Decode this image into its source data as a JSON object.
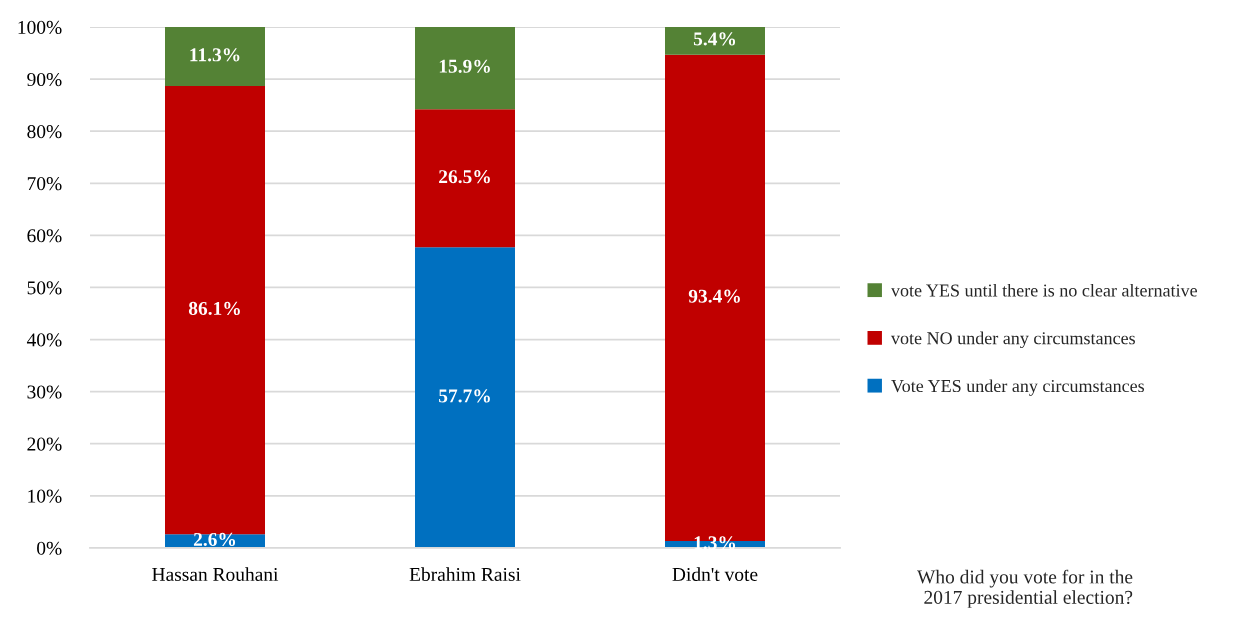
{
  "chart_data": {
    "type": "bar",
    "stacked": true,
    "categories": [
      "Hassan Rouhani",
      "Ebrahim Raisi",
      "Didn't vote"
    ],
    "series": [
      {
        "name": "Vote YES under any circumstances",
        "color": "#0070c0",
        "values": [
          2.6,
          57.7,
          1.3
        ],
        "value_labels": [
          "2.6%",
          "57.7%",
          "1.3%"
        ]
      },
      {
        "name": "vote NO under any circumstances",
        "color": "#c00000",
        "values": [
          86.1,
          26.5,
          93.4
        ],
        "value_labels": [
          "86.1%",
          "26.5%",
          "93.4%"
        ]
      },
      {
        "name": "vote YES until there is no clear alternative",
        "color": "#548235",
        "values": [
          11.3,
          15.9,
          5.4
        ],
        "value_labels": [
          "11.3%",
          "15.9%",
          "5.4%"
        ]
      }
    ],
    "ylim": [
      0,
      100
    ],
    "yticks": [
      {
        "value": 0,
        "label": "0%"
      },
      {
        "value": 10,
        "label": "10%"
      },
      {
        "value": 20,
        "label": "20%"
      },
      {
        "value": 30,
        "label": "30%"
      },
      {
        "value": 40,
        "label": "40%"
      },
      {
        "value": 50,
        "label": "50%"
      },
      {
        "value": 60,
        "label": "60%"
      },
      {
        "value": 70,
        "label": "70%"
      },
      {
        "value": 80,
        "label": "80%"
      },
      {
        "value": 90,
        "label": "90%"
      },
      {
        "value": 100,
        "label": "100%"
      }
    ],
    "grid": "y",
    "legend": "right",
    "annotations": [
      "Who did you vote for in the\n2017 presidential election?"
    ]
  }
}
